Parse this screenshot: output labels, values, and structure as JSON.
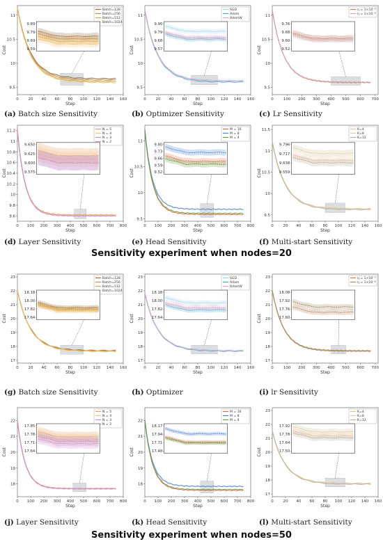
{
  "section_titles": [
    "Sensitivity experiment when nodes=20",
    "Sensitivity experiment when nodes=50"
  ],
  "captions": [
    {
      "letter": "(a)",
      "text": "Batch size Sensitivity"
    },
    {
      "letter": "(b)",
      "text": "Optimizer Sensitivity"
    },
    {
      "letter": "(c)",
      "text": "Lr Sensitivity"
    },
    {
      "letter": "(d)",
      "text": "Layer Sensitivity"
    },
    {
      "letter": "(e)",
      "text": "Head Sensitivity"
    },
    {
      "letter": "(f)",
      "text": "Multi-start Sensitivity"
    },
    {
      "letter": "(g)",
      "text": "Batch size Sensitivity"
    },
    {
      "letter": "(h)",
      "text": "Optimizer"
    },
    {
      "letter": "(i)",
      "text": "lr Sensitivity"
    },
    {
      "letter": "(j)",
      "text": "Layer Sensitivity"
    },
    {
      "letter": "(k)",
      "text": "Head Sensitivity"
    },
    {
      "letter": "(l)",
      "text": "Multi-start Sensitivity"
    }
  ],
  "chart_data": [
    {
      "type": "line",
      "id": "a",
      "xlabel": "Step",
      "ylabel": "Cost",
      "xlim": [
        0,
        160
      ],
      "ylim": [
        9.35,
        11.2
      ],
      "xticks": [
        0,
        20,
        40,
        60,
        80,
        100,
        120,
        140,
        160
      ],
      "yticks": [
        9.5,
        10.0,
        10.5,
        11.0
      ],
      "series": [
        {
          "name": "Batch=128",
          "color": "#8a6d3b"
        },
        {
          "name": "Batch=256",
          "color": "#c98a4a"
        },
        {
          "name": "Batch=512",
          "color": "#d9a441"
        },
        {
          "name": "Batch=1024",
          "color": "#f2c46d"
        }
      ],
      "start": 11.15,
      "end": [
        9.68,
        9.65,
        9.62,
        9.6
      ],
      "knee": 20,
      "inset": {
        "yticks": [
          "9.89",
          "9.79",
          "9.69",
          "9.59"
        ],
        "vals": [
          9.74,
          9.71,
          9.68,
          9.65
        ],
        "band": 0.04
      },
      "inset_x": [
        65,
        100
      ]
    },
    {
      "type": "line",
      "id": "b",
      "xlabel": "Step",
      "ylabel": "Cost",
      "xlim": [
        0,
        160
      ],
      "ylim": [
        9.35,
        11.2
      ],
      "xticks": [
        0,
        20,
        40,
        60,
        80,
        100,
        120,
        140,
        160
      ],
      "yticks": [
        9.5,
        10.0,
        10.5,
        11.0
      ],
      "series": [
        {
          "name": "SGD",
          "color": "#9fd3e6"
        },
        {
          "name": "Adam",
          "color": "#4aa8d8"
        },
        {
          "name": "AdamW",
          "color": "#e9a3c0"
        }
      ],
      "start": 11.1,
      "end": [
        9.64,
        9.61,
        9.63
      ],
      "knee": 20,
      "inset": {
        "yticks": [
          "9.90",
          "9.79",
          "9.68",
          "9.57"
        ],
        "vals": [
          9.8,
          9.7,
          9.72
        ],
        "band": 0.03
      },
      "inset_x": [
        70,
        110
      ]
    },
    {
      "type": "line",
      "id": "c",
      "xlabel": "Step",
      "ylabel": "Cost",
      "xlim": [
        0,
        720
      ],
      "ylim": [
        9.35,
        11.2
      ],
      "xticks": [
        0,
        100,
        200,
        300,
        400,
        500,
        600,
        700
      ],
      "yticks": [
        9.5,
        10.0,
        10.5,
        11.0
      ],
      "series": [
        {
          "name": "η = 1×10⁻⁵",
          "color": "#b5855a"
        },
        {
          "name": "η = 1×10⁻⁶",
          "color": "#d9a3b5"
        }
      ],
      "start": 11.1,
      "end": [
        9.6,
        9.61
      ],
      "knee": 80,
      "inset": {
        "yticks": [
          "9.76",
          "9.68",
          "9.60",
          "9.52"
        ],
        "vals": [
          9.62,
          9.61
        ],
        "band": 0.03
      },
      "inset_x": [
        400,
        600
      ]
    },
    {
      "type": "line",
      "id": "d",
      "xlabel": "Step",
      "ylabel": "Cost",
      "xlim": [
        0,
        800
      ],
      "ylim": [
        9.5,
        11.3
      ],
      "xticks": [
        0,
        100,
        200,
        300,
        400,
        500,
        600,
        700,
        800
      ],
      "yticks": [
        9.6,
        9.8,
        10.0,
        10.2,
        10.4,
        10.6,
        10.8,
        11.0,
        11.2
      ],
      "series": [
        {
          "name": "N = 5",
          "color": "#e69b6e"
        },
        {
          "name": "N = 4",
          "color": "#f2c46d"
        },
        {
          "name": "N = 3",
          "color": "#b58fd9"
        },
        {
          "name": "N = 2",
          "color": "#d98fc7"
        }
      ],
      "start": 11.2,
      "end": [
        9.62,
        9.61,
        9.6,
        9.6
      ],
      "knee": 60,
      "inset": {
        "yticks": [
          "9.650",
          "9.625",
          "9.600",
          "9.575"
        ],
        "vals": [
          9.62,
          9.61,
          9.6,
          9.6
        ],
        "band": 0.02
      },
      "inset_x": [
        430,
        520
      ]
    },
    {
      "type": "line",
      "id": "e",
      "xlabel": "Step",
      "ylabel": "Cost",
      "xlim": [
        0,
        800
      ],
      "ylim": [
        9.45,
        11.3
      ],
      "xticks": [
        0,
        100,
        200,
        300,
        400,
        500,
        600,
        700,
        800
      ],
      "yticks": [
        9.5,
        10.0,
        10.5,
        11.0
      ],
      "series": [
        {
          "name": "M = 16",
          "color": "#e06b4a"
        },
        {
          "name": "M = 8",
          "color": "#4a7fd0"
        },
        {
          "name": "M = 4",
          "color": "#6a9a3c"
        }
      ],
      "start": 11.2,
      "end": [
        9.58,
        9.68,
        9.6
      ],
      "knee": 60,
      "inset": {
        "yticks": [
          "9.80",
          "9.73",
          "9.66",
          "9.59",
          "9.52"
        ],
        "vals": [
          9.63,
          9.72,
          9.6
        ],
        "band": 0.03
      },
      "inset_x": [
        420,
        520
      ]
    },
    {
      "type": "line",
      "id": "f",
      "xlabel": "Step",
      "ylabel": "Cost",
      "xlim": [
        0,
        160
      ],
      "ylim": [
        9.35,
        11.6
      ],
      "xticks": [
        0,
        20,
        40,
        60,
        80,
        100,
        120,
        140,
        160
      ],
      "yticks": [
        9.5,
        10.0,
        10.5,
        11.0,
        11.5
      ],
      "series": [
        {
          "name": "K=4",
          "color": "#d8c59c"
        },
        {
          "name": "K=8",
          "color": "#efc9a0"
        },
        {
          "name": "K=12",
          "color": "#b9b0a0"
        }
      ],
      "start": 11.2,
      "end": [
        9.64,
        9.63,
        9.62
      ],
      "knee": 20,
      "inset": {
        "yticks": [
          "9.796",
          "9.717",
          "9.638",
          "9.559"
        ],
        "vals": [
          9.72,
          9.66,
          9.64
        ],
        "band": 0.03
      },
      "inset_x": [
        80,
        110
      ]
    },
    {
      "type": "line",
      "id": "g",
      "xlabel": "Step",
      "ylabel": "Cost",
      "xlim": [
        0,
        160
      ],
      "ylim": [
        16.8,
        23.2
      ],
      "xticks": [
        0,
        20,
        40,
        60,
        80,
        100,
        120,
        140,
        160
      ],
      "yticks": [
        17,
        18,
        19,
        20,
        21,
        22,
        23
      ],
      "series": [
        {
          "name": "Batch=128",
          "color": "#8a6d3b"
        },
        {
          "name": "Batch=256",
          "color": "#c98a4a"
        },
        {
          "name": "Batch=512",
          "color": "#d9a441"
        },
        {
          "name": "Batch=1024",
          "color": "#f2c46d"
        }
      ],
      "start": 22.0,
      "end": [
        17.7,
        17.68,
        17.65,
        17.63
      ],
      "knee": 20,
      "inset": {
        "yticks": [
          "18.18",
          "18.00",
          "17.82",
          "17.64"
        ],
        "vals": [
          17.85,
          17.82,
          17.8,
          17.78
        ],
        "band": 0.05
      },
      "inset_x": [
        65,
        100
      ]
    },
    {
      "type": "line",
      "id": "h",
      "xlabel": "Step",
      "ylabel": "Cost",
      "xlim": [
        0,
        160
      ],
      "ylim": [
        16.8,
        23.2
      ],
      "xticks": [
        0,
        20,
        40,
        60,
        80,
        100,
        120,
        140,
        160
      ],
      "yticks": [
        17,
        18,
        19,
        20,
        21,
        22,
        23
      ],
      "series": [
        {
          "name": "SGD",
          "color": "#9fd3e6"
        },
        {
          "name": "Adam",
          "color": "#4aa8d8"
        },
        {
          "name": "AdamW",
          "color": "#e9a3c0"
        }
      ],
      "start": 21.8,
      "end": [
        17.7,
        17.65,
        17.68
      ],
      "knee": 20,
      "inset": {
        "yticks": [
          "18.18",
          "18.00",
          "17.82",
          "17.64"
        ],
        "vals": [
          17.95,
          17.8,
          17.85
        ],
        "band": 0.05
      },
      "inset_x": [
        70,
        110
      ]
    },
    {
      "type": "line",
      "id": "i",
      "xlabel": "Step",
      "ylabel": "Cost",
      "xlim": [
        0,
        720
      ],
      "ylim": [
        16.8,
        23.2
      ],
      "xticks": [
        0,
        100,
        200,
        300,
        400,
        500,
        600,
        700
      ],
      "yticks": [
        17,
        18,
        19,
        20,
        21,
        22,
        23
      ],
      "series": [
        {
          "name": "η = 1×10⁻⁵",
          "color": "#b5855a"
        },
        {
          "name": "η = 1×10⁻⁶",
          "color": "#9a8d5a"
        }
      ],
      "start": 22.0,
      "end": [
        17.65,
        17.7
      ],
      "knee": 80,
      "inset": {
        "yticks": [
          "18.08",
          "17.92",
          "17.76",
          "17.60"
        ],
        "vals": [
          17.7,
          17.8
        ],
        "band": 0.05
      },
      "inset_x": [
        400,
        500
      ]
    },
    {
      "type": "line",
      "id": "j",
      "xlabel": "Step",
      "ylabel": "Cost",
      "xlim": [
        0,
        800
      ],
      "ylim": [
        17.2,
        22.8
      ],
      "xticks": [
        0,
        100,
        200,
        300,
        400,
        500,
        600,
        700,
        800
      ],
      "yticks": [
        18,
        19,
        20,
        21,
        22
      ],
      "series": [
        {
          "name": "N = 5",
          "color": "#e69b6e"
        },
        {
          "name": "N = 4",
          "color": "#f2c46d"
        },
        {
          "name": "N = 3",
          "color": "#b58fd9"
        },
        {
          "name": "N = 2",
          "color": "#d98fc7"
        }
      ],
      "start": 22.0,
      "end": [
        17.72,
        17.71,
        17.7,
        17.69
      ],
      "knee": 60,
      "inset": {
        "yticks": [
          "17.85",
          "17.78",
          "17.71",
          "17.64"
        ],
        "vals": [
          17.76,
          17.74,
          17.72,
          17.7
        ],
        "band": 0.04
      },
      "inset_x": [
        420,
        520
      ]
    },
    {
      "type": "line",
      "id": "k",
      "xlabel": "Step",
      "ylabel": "Cost",
      "xlim": [
        0,
        800
      ],
      "ylim": [
        17.2,
        22.8
      ],
      "xticks": [
        0,
        100,
        200,
        300,
        400,
        500,
        600,
        700,
        800
      ],
      "yticks": [
        18,
        19,
        20,
        21,
        22
      ],
      "series": [
        {
          "name": "M = 16",
          "color": "#e06b4a"
        },
        {
          "name": "M = 8",
          "color": "#4a7fd0"
        },
        {
          "name": "M = 4",
          "color": "#6a9a3c"
        }
      ],
      "start": 22.0,
      "end": [
        17.6,
        17.85,
        17.65
      ],
      "knee": 60,
      "inset": {
        "yticks": [
          "18.17",
          "17.94",
          "17.71",
          "17.48"
        ],
        "vals": [
          17.72,
          17.95,
          17.7
        ],
        "band": 0.05
      },
      "inset_x": [
        420,
        520
      ]
    },
    {
      "type": "line",
      "id": "l",
      "xlabel": "Step",
      "ylabel": "Cost",
      "xlim": [
        0,
        160
      ],
      "ylim": [
        16.8,
        23.2
      ],
      "xticks": [
        0,
        20,
        40,
        60,
        80,
        100,
        120,
        140,
        160
      ],
      "yticks": [
        17,
        18,
        19,
        20,
        21,
        22,
        23
      ],
      "series": [
        {
          "name": "K=4",
          "color": "#d8c59c"
        },
        {
          "name": "K=8",
          "color": "#efc9a0"
        },
        {
          "name": "K=12",
          "color": "#b9b0a0"
        }
      ],
      "start": 21.5,
      "end": [
        17.75,
        17.72,
        17.7
      ],
      "knee": 20,
      "inset": {
        "yticks": [
          "17.92",
          "17.78",
          "17.64",
          "17.50"
        ],
        "vals": [
          17.82,
          17.75,
          17.72
        ],
        "band": 0.05
      },
      "inset_x": [
        80,
        110
      ]
    }
  ]
}
